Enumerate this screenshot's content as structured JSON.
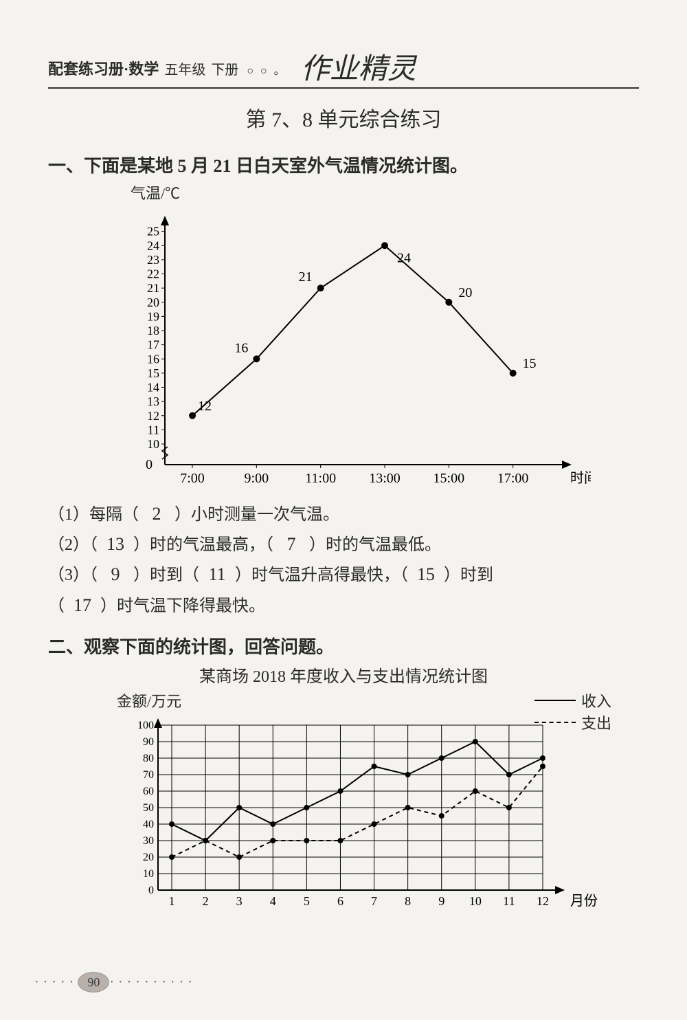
{
  "header": {
    "book": "配套练习册·数学",
    "grade": "五年级",
    "volume": "下册",
    "circles": "○ ○ 。",
    "handwriting": "作业精灵"
  },
  "title": "第 7、8 单元综合练习",
  "section1": {
    "heading": "一、下面是某地 5 月 21 日白天室外气温情况统计图。",
    "ylabel": "气温/℃",
    "xlabel": "时间",
    "chart": {
      "type": "line",
      "x_ticks": [
        "7:00",
        "9:00",
        "11:00",
        "13:00",
        "15:00",
        "17:00"
      ],
      "y_min": 0,
      "y_break_to": 10,
      "y_max": 25,
      "y_step": 1,
      "points": [
        {
          "x": "7:00",
          "y": 12,
          "label": "12"
        },
        {
          "x": "9:00",
          "y": 16,
          "label": "16"
        },
        {
          "x": "11:00",
          "y": 21,
          "label": "21"
        },
        {
          "x": "13:00",
          "y": 24,
          "label": "24"
        },
        {
          "x": "15:00",
          "y": 20,
          "label": "20"
        },
        {
          "x": "17:00",
          "y": 15,
          "label": "15"
        }
      ],
      "line_color": "#000000",
      "marker": "circle",
      "marker_fill": "#000000",
      "marker_radius": 5,
      "line_width": 2,
      "grid": false,
      "background": "#f5f3ef"
    },
    "questions": {
      "q1_pre": "（1）每隔（",
      "q1_ans": "2",
      "q1_post": "）小时测量一次气温。",
      "q2_pre": "（2）（",
      "q2_a1": "13",
      "q2_mid1": "）时的气温最高，（",
      "q2_a2": "7",
      "q2_post": "）时的气温最低。",
      "q3_pre": "（3）（",
      "q3_a1": "9",
      "q3_mid1": "）时到（",
      "q3_a2": "11",
      "q3_mid2": "）时气温升高得最快，（",
      "q3_a3": "15",
      "q3_mid3": "）时到",
      "q3_line2_pre": "（",
      "q3_a4": "17",
      "q3_line2_post": "）时气温下降得最快。"
    }
  },
  "section2": {
    "heading": "二、观察下面的统计图，回答问题。",
    "chart_title": "某商场 2018 年度收入与支出情况统计图",
    "ylabel": "金额/万元",
    "xlabel": "月份",
    "legend": {
      "income": "收入",
      "expense": "支出"
    },
    "chart": {
      "type": "line",
      "x_ticks": [
        "1",
        "2",
        "3",
        "4",
        "5",
        "6",
        "7",
        "8",
        "9",
        "10",
        "11",
        "12"
      ],
      "y_min": 0,
      "y_max": 100,
      "y_step": 10,
      "series": [
        {
          "name": "income",
          "style": "solid",
          "color": "#000000",
          "values": [
            40,
            30,
            50,
            40,
            50,
            60,
            75,
            70,
            80,
            90,
            70,
            80
          ]
        },
        {
          "name": "expense",
          "style": "dashed",
          "color": "#000000",
          "values": [
            20,
            30,
            20,
            30,
            30,
            30,
            40,
            50,
            45,
            60,
            50,
            75
          ]
        }
      ],
      "grid": true,
      "grid_color": "#000000",
      "marker": "circle",
      "marker_fill": "#000000",
      "marker_radius": 4,
      "line_width": 2,
      "background": "#f5f3ef"
    }
  },
  "page_number": "90"
}
